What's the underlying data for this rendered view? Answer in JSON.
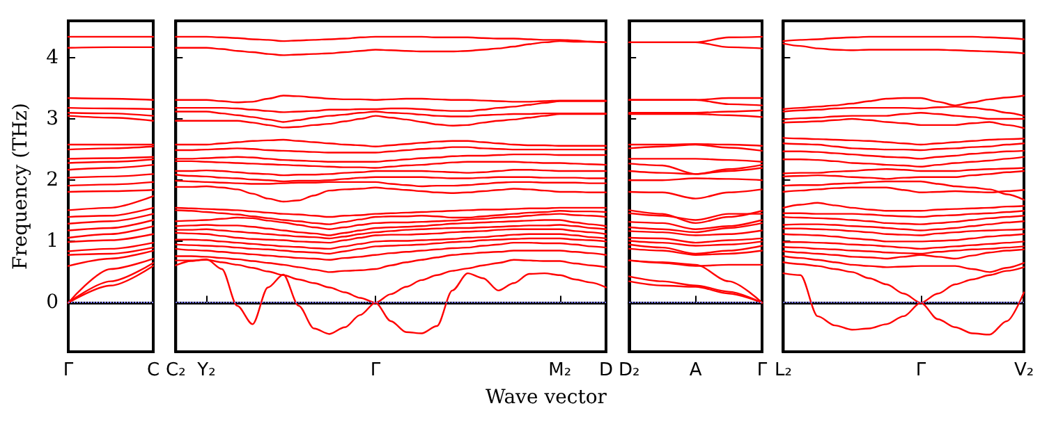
{
  "chart_data": [
    {
      "type": "line",
      "ylabel": "Frequency (THz)",
      "color": "#ff0000",
      "marker": "none",
      "categories": [
        "Γ",
        null,
        "C"
      ],
      "ylim": [
        -0.8,
        4.6
      ],
      "yticks": [
        0,
        1,
        2,
        3,
        4
      ],
      "ref_lines": [
        {
          "axis": "y",
          "value": 0,
          "color": "#7f7fff",
          "line_style": "dotted"
        }
      ],
      "series": [
        {
          "values": [
            4.34,
            4.34,
            4.34
          ]
        },
        {
          "values": [
            4.16,
            4.17,
            4.17
          ]
        },
        {
          "values": [
            3.34,
            3.33,
            3.31
          ]
        },
        {
          "values": [
            3.18,
            3.17,
            3.16
          ]
        },
        {
          "values": [
            3.1,
            3.09,
            3.05
          ]
        },
        {
          "values": [
            3.05,
            3.02,
            2.97
          ]
        },
        {
          "values": [
            2.58,
            2.58,
            2.58
          ]
        },
        {
          "values": [
            2.5,
            2.52,
            2.55
          ]
        },
        {
          "values": [
            2.35,
            2.36,
            2.38
          ]
        },
        {
          "values": [
            2.28,
            2.3,
            2.34
          ]
        },
        {
          "values": [
            2.17,
            2.2,
            2.25
          ]
        },
        {
          "values": [
            2.04,
            2.06,
            2.1
          ]
        },
        {
          "values": [
            1.91,
            1.93,
            1.97
          ]
        },
        {
          "values": [
            1.81,
            1.82,
            1.84
          ]
        },
        {
          "values": [
            1.51,
            1.55,
            1.74
          ]
        },
        {
          "values": [
            1.4,
            1.42,
            1.55
          ]
        },
        {
          "values": [
            1.29,
            1.33,
            1.45
          ]
        },
        {
          "values": [
            1.18,
            1.22,
            1.35
          ]
        },
        {
          "values": [
            1.06,
            1.12,
            1.25
          ]
        },
        {
          "values": [
            0.99,
            1.02,
            1.12
          ]
        },
        {
          "values": [
            0.84,
            0.88,
            0.98
          ]
        },
        {
          "values": [
            0.78,
            0.8,
            0.9
          ]
        },
        {
          "values": [
            0.6,
            0.72,
            0.85
          ]
        },
        {
          "values": [
            0,
            0.55,
            0.72
          ]
        },
        {
          "values": [
            0,
            0.35,
            0.65
          ]
        },
        {
          "values": [
            0,
            0.28,
            0.6
          ]
        }
      ]
    },
    {
      "type": "line",
      "xlabel": "Wave vector",
      "color": "#ff0000",
      "marker": "none",
      "tick_labels": "x",
      "categories": [
        "C₂",
        null,
        "Y₂",
        null,
        null,
        null,
        null,
        null,
        null,
        null,
        null,
        null,
        null,
        "Γ",
        null,
        null,
        null,
        null,
        null,
        null,
        null,
        null,
        null,
        null,
        null,
        "M₂",
        null,
        null,
        "D"
      ],
      "ylim": [
        -0.8,
        4.6
      ],
      "yticks": [
        0,
        1,
        2,
        3,
        4
      ],
      "ref_lines": [
        {
          "axis": "y",
          "value": 0,
          "color": "#7f7fff",
          "line_style": "dotted"
        }
      ],
      "series": [
        {
          "values": [
            4.34,
            4.34,
            4.34,
            4.33,
            4.32,
            4.3,
            4.29,
            4.27,
            4.28,
            4.29,
            4.3,
            4.31,
            4.33,
            4.34,
            4.34,
            4.34,
            4.34,
            4.33,
            4.33,
            4.33,
            4.32,
            4.31,
            4.31,
            4.3,
            4.29,
            4.29,
            4.28,
            4.26,
            4.25
          ]
        },
        {
          "values": [
            4.16,
            4.16,
            4.16,
            4.14,
            4.11,
            4.09,
            4.06,
            4.04,
            4.05,
            4.06,
            4.07,
            4.09,
            4.11,
            4.13,
            4.12,
            4.11,
            4.1,
            4.1,
            4.1,
            4.11,
            4.13,
            4.15,
            4.18,
            4.22,
            4.25,
            4.27,
            4.26,
            4.26,
            4.25
          ]
        },
        {
          "values": [
            3.31,
            3.31,
            3.31,
            3.29,
            3.27,
            3.28,
            3.33,
            3.38,
            3.37,
            3.35,
            3.33,
            3.32,
            3.32,
            3.31,
            3.32,
            3.33,
            3.33,
            3.32,
            3.31,
            3.31,
            3.3,
            3.29,
            3.28,
            3.28,
            3.29,
            3.3,
            3.3,
            3.3,
            3.3
          ]
        },
        {
          "values": [
            3.18,
            3.18,
            3.18,
            3.18,
            3.17,
            3.15,
            3.13,
            3.11,
            3.12,
            3.13,
            3.15,
            3.15,
            3.16,
            3.16,
            3.17,
            3.17,
            3.16,
            3.14,
            3.13,
            3.13,
            3.15,
            3.18,
            3.2,
            3.23,
            3.26,
            3.29,
            3.29,
            3.29,
            3.29
          ]
        },
        {
          "values": [
            3.12,
            3.12,
            3.12,
            3.09,
            3.06,
            3.03,
            2.99,
            2.95,
            2.98,
            3.02,
            3.05,
            3.07,
            3.1,
            3.12,
            3.1,
            3.09,
            3.07,
            3.05,
            3.04,
            3.04,
            3.06,
            3.07,
            3.08,
            3.08,
            3.09,
            3.09,
            3.09,
            3.09,
            3.09
          ]
        },
        {
          "values": [
            2.97,
            2.97,
            2.97,
            2.97,
            2.97,
            2.94,
            2.9,
            2.86,
            2.87,
            2.9,
            2.92,
            2.96,
            3.0,
            3.05,
            3.02,
            2.99,
            2.95,
            2.91,
            2.89,
            2.9,
            2.94,
            2.97,
            2.99,
            3.02,
            3.05,
            3.08,
            3.08,
            3.08,
            3.08
          ]
        },
        {
          "values": [
            2.58,
            2.58,
            2.58,
            2.6,
            2.62,
            2.64,
            2.65,
            2.66,
            2.64,
            2.62,
            2.6,
            2.58,
            2.57,
            2.55,
            2.57,
            2.59,
            2.61,
            2.63,
            2.64,
            2.64,
            2.62,
            2.6,
            2.58,
            2.57,
            2.57,
            2.56,
            2.56,
            2.56,
            2.56
          ]
        },
        {
          "values": [
            2.49,
            2.49,
            2.5,
            2.51,
            2.52,
            2.51,
            2.49,
            2.48,
            2.47,
            2.46,
            2.45,
            2.45,
            2.45,
            2.45,
            2.47,
            2.49,
            2.51,
            2.52,
            2.54,
            2.54,
            2.52,
            2.51,
            2.5,
            2.5,
            2.5,
            2.5,
            2.5,
            2.5,
            2.5
          ]
        },
        {
          "values": [
            2.35,
            2.35,
            2.36,
            2.37,
            2.38,
            2.37,
            2.35,
            2.33,
            2.32,
            2.31,
            2.3,
            2.3,
            2.3,
            2.3,
            2.32,
            2.34,
            2.36,
            2.37,
            2.39,
            2.4,
            2.4,
            2.41,
            2.42,
            2.42,
            2.42,
            2.41,
            2.41,
            2.41,
            2.41
          ]
        },
        {
          "values": [
            2.31,
            2.31,
            2.3,
            2.29,
            2.28,
            2.27,
            2.26,
            2.25,
            2.24,
            2.23,
            2.22,
            2.21,
            2.21,
            2.2,
            2.22,
            2.24,
            2.25,
            2.27,
            2.29,
            2.3,
            2.3,
            2.3,
            2.3,
            2.29,
            2.28,
            2.28,
            2.27,
            2.26,
            2.25
          ]
        },
        {
          "values": [
            2.15,
            2.15,
            2.16,
            2.15,
            2.13,
            2.11,
            2.1,
            2.08,
            2.09,
            2.09,
            2.1,
            2.12,
            2.13,
            2.15,
            2.15,
            2.15,
            2.15,
            2.14,
            2.13,
            2.12,
            2.13,
            2.15,
            2.17,
            2.17,
            2.16,
            2.15,
            2.15,
            2.15,
            2.15
          ]
        },
        {
          "values": [
            2.09,
            2.07,
            2.06,
            2.04,
            2.03,
            2.01,
            2.0,
            1.98,
            1.99,
            1.99,
            2.0,
            2.02,
            2.04,
            2.05,
            2.05,
            2.05,
            2.05,
            2.04,
            2.03,
            2.03,
            2.04,
            2.05,
            2.05,
            2.05,
            2.04,
            2.04,
            2.04,
            2.03,
            2.03
          ]
        },
        {
          "values": [
            1.99,
            1.98,
            1.97,
            1.96,
            1.95,
            1.94,
            1.94,
            1.95,
            1.96,
            1.96,
            1.97,
            1.97,
            1.97,
            1.97,
            1.94,
            1.92,
            1.9,
            1.91,
            1.91,
            1.92,
            1.94,
            1.96,
            1.97,
            1.97,
            1.96,
            1.96,
            1.96,
            1.95,
            1.95
          ]
        },
        {
          "values": [
            1.89,
            1.89,
            1.9,
            1.88,
            1.85,
            1.78,
            1.7,
            1.65,
            1.67,
            1.75,
            1.83,
            1.85,
            1.86,
            1.88,
            1.86,
            1.84,
            1.82,
            1.8,
            1.79,
            1.8,
            1.82,
            1.84,
            1.86,
            1.85,
            1.83,
            1.81,
            1.81,
            1.8,
            1.8
          ]
        },
        {
          "values": [
            1.55,
            1.54,
            1.53,
            1.52,
            1.51,
            1.49,
            1.47,
            1.45,
            1.44,
            1.42,
            1.4,
            1.42,
            1.43,
            1.45,
            1.46,
            1.47,
            1.48,
            1.49,
            1.5,
            1.51,
            1.52,
            1.52,
            1.53,
            1.54,
            1.54,
            1.55,
            1.55,
            1.55,
            1.55
          ]
        },
        {
          "values": [
            1.51,
            1.5,
            1.48,
            1.46,
            1.44,
            1.41,
            1.38,
            1.35,
            1.33,
            1.3,
            1.28,
            1.32,
            1.36,
            1.4,
            1.41,
            1.41,
            1.42,
            1.41,
            1.39,
            1.39,
            1.41,
            1.43,
            1.45,
            1.47,
            1.48,
            1.5,
            1.49,
            1.49,
            1.48
          ]
        },
        {
          "values": [
            1.33,
            1.34,
            1.35,
            1.37,
            1.39,
            1.38,
            1.34,
            1.31,
            1.27,
            1.23,
            1.2,
            1.23,
            1.27,
            1.3,
            1.31,
            1.31,
            1.32,
            1.33,
            1.34,
            1.36,
            1.37,
            1.39,
            1.4,
            1.42,
            1.44,
            1.45,
            1.43,
            1.42,
            1.4
          ]
        },
        {
          "values": [
            1.25,
            1.26,
            1.27,
            1.26,
            1.26,
            1.24,
            1.21,
            1.18,
            1.15,
            1.13,
            1.1,
            1.14,
            1.18,
            1.22,
            1.23,
            1.24,
            1.25,
            1.27,
            1.29,
            1.3,
            1.31,
            1.32,
            1.33,
            1.34,
            1.35,
            1.35,
            1.31,
            1.28,
            1.25
          ]
        },
        {
          "values": [
            1.19,
            1.19,
            1.2,
            1.18,
            1.16,
            1.14,
            1.12,
            1.1,
            1.08,
            1.07,
            1.05,
            1.08,
            1.12,
            1.15,
            1.17,
            1.19,
            1.2,
            1.21,
            1.22,
            1.22,
            1.23,
            1.24,
            1.25,
            1.26,
            1.26,
            1.27,
            1.25,
            1.22,
            1.2
          ]
        },
        {
          "values": [
            1.14,
            1.13,
            1.12,
            1.09,
            1.06,
            1.04,
            1.03,
            1.02,
            1.0,
            0.99,
            0.98,
            1.02,
            1.06,
            1.1,
            1.11,
            1.11,
            1.12,
            1.13,
            1.15,
            1.16,
            1.17,
            1.19,
            1.2,
            1.2,
            1.2,
            1.2,
            1.17,
            1.15,
            1.12
          ]
        },
        {
          "values": [
            1.03,
            1.03,
            1.02,
            1.0,
            0.98,
            0.96,
            0.94,
            0.92,
            0.91,
            0.89,
            0.88,
            0.92,
            0.96,
            1.0,
            1.01,
            1.01,
            1.02,
            1.03,
            1.04,
            1.06,
            1.07,
            1.09,
            1.11,
            1.12,
            1.12,
            1.12,
            1.1,
            1.07,
            1.05
          ]
        },
        {
          "values": [
            0.95,
            0.94,
            0.93,
            0.92,
            0.9,
            0.88,
            0.87,
            0.85,
            0.83,
            0.82,
            0.8,
            0.84,
            0.88,
            0.92,
            0.93,
            0.94,
            0.95,
            0.97,
            0.99,
            1.0,
            1.02,
            1.03,
            1.04,
            1.05,
            1.05,
            1.05,
            1.03,
            1.02,
            1.0
          ]
        },
        {
          "values": [
            0.88,
            0.86,
            0.85,
            0.83,
            0.81,
            0.79,
            0.77,
            0.75,
            0.73,
            0.72,
            0.7,
            0.73,
            0.75,
            0.78,
            0.81,
            0.83,
            0.85,
            0.87,
            0.89,
            0.9,
            0.93,
            0.95,
            0.98,
            0.98,
            0.97,
            0.97,
            0.95,
            0.92,
            0.9
          ]
        },
        {
          "values": [
            0.76,
            0.76,
            0.75,
            0.73,
            0.71,
            0.68,
            0.65,
            0.62,
            0.58,
            0.54,
            0.5,
            0.52,
            0.53,
            0.55,
            0.61,
            0.66,
            0.7,
            0.74,
            0.78,
            0.8,
            0.82,
            0.83,
            0.85,
            0.85,
            0.85,
            0.85,
            0.83,
            0.81,
            0.78
          ]
        },
        {
          "values": [
            0.69,
            0.69,
            0.7,
            0.66,
            0.62,
            0.57,
            0.51,
            0.45,
            0.38,
            0.32,
            0.25,
            0.17,
            0.08,
            0.0,
            0.14,
            0.26,
            0.37,
            0.45,
            0.52,
            0.56,
            0.61,
            0.65,
            0.7,
            0.69,
            0.68,
            0.68,
            0.64,
            0.61,
            0.58
          ]
        },
        {
          "values": [
            0.61,
            0.68,
            0.71,
            0.55,
            -0.05,
            -0.35,
            0.25,
            0.46,
            -0.05,
            -0.42,
            -0.51,
            -0.4,
            -0.2,
            0.0,
            -0.3,
            -0.48,
            -0.5,
            -0.38,
            0.2,
            0.48,
            0.4,
            0.2,
            0.32,
            0.47,
            0.48,
            0.45,
            0.38,
            0.33,
            0.25
          ]
        }
      ]
    },
    {
      "type": "line",
      "color": "#ff0000",
      "marker": "none",
      "tick_labels": "x",
      "categories": [
        "D₂",
        null,
        "A",
        null,
        "Γ"
      ],
      "ylim": [
        -0.8,
        4.6
      ],
      "yticks": [
        0,
        1,
        2,
        3,
        4
      ],
      "ref_lines": [
        {
          "axis": "y",
          "value": 0,
          "color": "#7f7fff",
          "line_style": "dotted"
        }
      ],
      "series": [
        {
          "values": [
            4.25,
            4.25,
            4.25,
            4.33,
            4.34
          ]
        },
        {
          "values": [
            4.25,
            4.25,
            4.25,
            4.17,
            4.15
          ]
        },
        {
          "values": [
            3.31,
            3.31,
            3.31,
            3.34,
            3.34
          ]
        },
        {
          "values": [
            3.31,
            3.31,
            3.31,
            3.24,
            3.22
          ]
        },
        {
          "values": [
            3.1,
            3.1,
            3.1,
            3.12,
            3.14
          ]
        },
        {
          "values": [
            3.08,
            3.08,
            3.08,
            3.06,
            3.03
          ]
        },
        {
          "values": [
            2.58,
            2.58,
            2.59,
            2.58,
            2.56
          ]
        },
        {
          "values": [
            2.52,
            2.55,
            2.58,
            2.53,
            2.48
          ]
        },
        {
          "values": [
            2.35,
            2.35,
            2.35,
            2.33,
            2.3
          ]
        },
        {
          "values": [
            2.27,
            2.24,
            2.1,
            2.18,
            2.25
          ]
        },
        {
          "values": [
            2.15,
            2.12,
            2.1,
            2.15,
            2.2
          ]
        },
        {
          "values": [
            2.0,
            2.0,
            2.03,
            2.02,
            2.0
          ]
        },
        {
          "values": [
            1.81,
            1.8,
            1.7,
            1.8,
            1.85
          ]
        },
        {
          "values": [
            1.51,
            1.45,
            1.3,
            1.4,
            1.5
          ]
        },
        {
          "values": [
            1.46,
            1.42,
            1.35,
            1.45,
            1.45
          ]
        },
        {
          "values": [
            1.32,
            1.3,
            1.2,
            1.25,
            1.35
          ]
        },
        {
          "values": [
            1.23,
            1.2,
            1.15,
            1.22,
            1.3
          ]
        },
        {
          "values": [
            1.17,
            1.15,
            1.1,
            1.12,
            1.18
          ]
        },
        {
          "values": [
            1.06,
            1.05,
            0.98,
            1.02,
            1.05
          ]
        },
        {
          "values": [
            1.01,
            0.98,
            0.93,
            0.95,
            1.0
          ]
        },
        {
          "values": [
            0.95,
            0.9,
            0.8,
            0.85,
            0.93
          ]
        },
        {
          "values": [
            0.88,
            0.85,
            0.78,
            0.8,
            0.85
          ]
        },
        {
          "values": [
            0.69,
            0.65,
            0.6,
            0.62,
            0.62
          ]
        },
        {
          "values": [
            0.69,
            0.66,
            0.62,
            0.35,
            0.0
          ]
        },
        {
          "values": [
            0.43,
            0.35,
            0.28,
            0.18,
            0.0
          ]
        },
        {
          "values": [
            0.35,
            0.28,
            0.26,
            0.15,
            0.0
          ]
        }
      ]
    },
    {
      "type": "line",
      "color": "#ff0000",
      "marker": "none",
      "tick_labels": "x",
      "categories": [
        "L₂",
        null,
        null,
        null,
        null,
        null,
        null,
        null,
        "Γ",
        null,
        null,
        null,
        null,
        null,
        "V₂"
      ],
      "ylim": [
        -0.8,
        4.6
      ],
      "yticks": [
        0,
        1,
        2,
        3,
        4
      ],
      "ref_lines": [
        {
          "axis": "y",
          "value": 0,
          "color": "#7f7fff",
          "line_style": "dotted"
        }
      ],
      "series": [
        {
          "values": [
            4.27,
            4.29,
            4.3,
            4.32,
            4.33,
            4.34,
            4.34,
            4.34,
            4.34,
            4.34,
            4.34,
            4.34,
            4.33,
            4.32,
            4.3
          ]
        },
        {
          "values": [
            4.23,
            4.19,
            4.15,
            4.13,
            4.12,
            4.13,
            4.13,
            4.13,
            4.13,
            4.13,
            4.12,
            4.11,
            4.1,
            4.09,
            4.07
          ]
        },
        {
          "values": [
            3.16,
            3.18,
            3.2,
            3.22,
            3.25,
            3.29,
            3.33,
            3.34,
            3.34,
            3.28,
            3.22,
            3.27,
            3.32,
            3.35,
            3.38
          ]
        },
        {
          "values": [
            3.12,
            3.14,
            3.15,
            3.17,
            3.18,
            3.18,
            3.18,
            3.18,
            3.17,
            3.19,
            3.2,
            3.18,
            3.15,
            3.1,
            3.05
          ]
        },
        {
          "values": [
            2.99,
            3.01,
            3.02,
            3.04,
            3.05,
            3.05,
            3.05,
            3.08,
            3.1,
            3.08,
            3.05,
            3.03,
            3.0,
            3.0,
            3.0
          ]
        },
        {
          "values": [
            2.94,
            2.95,
            2.96,
            2.98,
            3.0,
            2.98,
            2.95,
            2.93,
            2.9,
            2.9,
            2.9,
            2.93,
            2.95,
            2.9,
            2.85
          ]
        },
        {
          "values": [
            2.69,
            2.68,
            2.67,
            2.66,
            2.65,
            2.64,
            2.62,
            2.6,
            2.58,
            2.6,
            2.62,
            2.64,
            2.66,
            2.67,
            2.68
          ]
        },
        {
          "values": [
            2.6,
            2.59,
            2.58,
            2.55,
            2.52,
            2.51,
            2.5,
            2.5,
            2.49,
            2.51,
            2.52,
            2.54,
            2.55,
            2.58,
            2.6
          ]
        },
        {
          "values": [
            2.47,
            2.47,
            2.46,
            2.44,
            2.42,
            2.4,
            2.38,
            2.37,
            2.35,
            2.38,
            2.4,
            2.43,
            2.45,
            2.47,
            2.48
          ]
        },
        {
          "values": [
            2.34,
            2.34,
            2.33,
            2.31,
            2.28,
            2.27,
            2.25,
            2.24,
            2.22,
            2.25,
            2.28,
            2.3,
            2.32,
            2.35,
            2.38
          ]
        },
        {
          "values": [
            2.11,
            2.12,
            2.12,
            2.14,
            2.15,
            2.17,
            2.18,
            2.17,
            2.15,
            2.15,
            2.15,
            2.17,
            2.18,
            2.19,
            2.2
          ]
        },
        {
          "values": [
            2.06,
            2.07,
            2.08,
            2.07,
            2.05,
            2.04,
            2.02,
            2.04,
            2.05,
            2.05,
            2.05,
            2.08,
            2.1,
            2.13,
            2.15
          ]
        },
        {
          "values": [
            1.91,
            1.92,
            1.92,
            1.94,
            1.95,
            1.97,
            1.98,
            1.98,
            1.98,
            1.94,
            1.9,
            1.88,
            1.85,
            1.77,
            1.68
          ]
        },
        {
          "values": [
            1.81,
            1.83,
            1.85,
            1.87,
            1.88,
            1.88,
            1.88,
            1.84,
            1.8,
            1.81,
            1.82,
            1.81,
            1.8,
            1.82,
            1.84
          ]
        },
        {
          "values": [
            1.55,
            1.6,
            1.63,
            1.59,
            1.55,
            1.52,
            1.5,
            1.5,
            1.5,
            1.52,
            1.53,
            1.54,
            1.55,
            1.57,
            1.58
          ]
        },
        {
          "values": [
            1.46,
            1.46,
            1.45,
            1.45,
            1.45,
            1.44,
            1.42,
            1.41,
            1.4,
            1.42,
            1.43,
            1.45,
            1.46,
            1.48,
            1.5
          ]
        },
        {
          "values": [
            1.4,
            1.39,
            1.38,
            1.37,
            1.35,
            1.33,
            1.3,
            1.29,
            1.28,
            1.3,
            1.32,
            1.35,
            1.38,
            1.4,
            1.42
          ]
        },
        {
          "values": [
            1.27,
            1.28,
            1.28,
            1.27,
            1.25,
            1.24,
            1.22,
            1.2,
            1.18,
            1.2,
            1.22,
            1.25,
            1.28,
            1.31,
            1.33
          ]
        },
        {
          "values": [
            1.21,
            1.21,
            1.2,
            1.19,
            1.17,
            1.15,
            1.12,
            1.11,
            1.1,
            1.13,
            1.15,
            1.17,
            1.18,
            1.19,
            1.2
          ]
        },
        {
          "values": [
            1.12,
            1.11,
            1.1,
            1.08,
            1.05,
            1.03,
            1.0,
            1.0,
            1.0,
            1.01,
            1.02,
            1.05,
            1.08,
            1.1,
            1.12
          ]
        },
        {
          "values": [
            0.99,
            0.99,
            0.98,
            0.97,
            0.95,
            0.94,
            0.92,
            0.9,
            0.88,
            0.9,
            0.92,
            0.94,
            0.96,
            0.98,
            1.0
          ]
        },
        {
          "values": [
            0.91,
            0.9,
            0.88,
            0.87,
            0.85,
            0.84,
            0.82,
            0.81,
            0.8,
            0.83,
            0.85,
            0.87,
            0.88,
            0.9,
            0.92
          ]
        },
        {
          "values": [
            0.84,
            0.82,
            0.8,
            0.78,
            0.75,
            0.74,
            0.72,
            0.75,
            0.78,
            0.75,
            0.72,
            0.77,
            0.82,
            0.85,
            0.87
          ]
        },
        {
          "values": [
            0.76,
            0.73,
            0.7,
            0.66,
            0.62,
            0.6,
            0.58,
            0.59,
            0.6,
            0.6,
            0.6,
            0.55,
            0.5,
            0.57,
            0.65
          ]
        },
        {
          "values": [
            0.66,
            0.63,
            0.6,
            0.55,
            0.5,
            0.4,
            0.3,
            0.15,
            0.0,
            0.15,
            0.3,
            0.38,
            0.45,
            0.52,
            0.58
          ]
        },
        {
          "values": [
            0.48,
            0.45,
            -0.22,
            -0.37,
            -0.44,
            -0.42,
            -0.35,
            -0.22,
            0.0,
            -0.27,
            -0.4,
            -0.5,
            -0.52,
            -0.3,
            0.17
          ]
        }
      ]
    }
  ]
}
